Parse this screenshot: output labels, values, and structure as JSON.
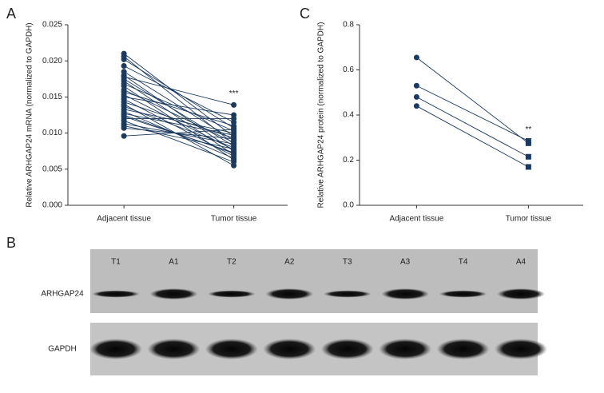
{
  "chart_data": [
    {
      "type": "paired-line",
      "panel_label": "A",
      "ylabel": "Relative ARHGAP24 mRNA (normalized to GAPDH)",
      "categories": [
        "Adjacent tissue",
        "Tumor tissue"
      ],
      "color": "#1b3a5e",
      "markers": [
        "circle",
        "circle"
      ],
      "ylim": [
        0,
        0.025
      ],
      "yticks": [
        {
          "value": 0,
          "label": "0.000"
        },
        {
          "value": 0.005,
          "label": "0.005"
        },
        {
          "value": 0.01,
          "label": "0.010"
        },
        {
          "value": 0.015,
          "label": "0.015"
        },
        {
          "value": 0.02,
          "label": "0.020"
        },
        {
          "value": 0.025,
          "label": "0.025"
        }
      ],
      "annotation": "***",
      "series": [
        {
          "values": [
            0.021,
            0.0095
          ]
        },
        {
          "values": [
            0.0206,
            0.0085
          ]
        },
        {
          "values": [
            0.0202,
            0.0107
          ]
        },
        {
          "values": [
            0.0193,
            0.0115
          ]
        },
        {
          "values": [
            0.0185,
            0.009
          ]
        },
        {
          "values": [
            0.018,
            0.0075
          ]
        },
        {
          "values": [
            0.0178,
            0.0139
          ]
        },
        {
          "values": [
            0.0175,
            0.0082
          ]
        },
        {
          "values": [
            0.0172,
            0.007
          ]
        },
        {
          "values": [
            0.0168,
            0.0103
          ]
        },
        {
          "values": [
            0.0165,
            0.0063
          ]
        },
        {
          "values": [
            0.016,
            0.0087
          ]
        },
        {
          "values": [
            0.0157,
            0.011
          ]
        },
        {
          "values": [
            0.0153,
            0.0077
          ]
        },
        {
          "values": [
            0.015,
            0.0125
          ]
        },
        {
          "values": [
            0.0147,
            0.0068
          ]
        },
        {
          "values": [
            0.0143,
            0.0093
          ]
        },
        {
          "values": [
            0.014,
            0.0055
          ]
        },
        {
          "values": [
            0.0137,
            0.008
          ]
        },
        {
          "values": [
            0.0133,
            0.01
          ]
        },
        {
          "values": [
            0.013,
            0.0065
          ]
        },
        {
          "values": [
            0.0127,
            0.0097
          ]
        },
        {
          "values": [
            0.0123,
            0.0073
          ]
        },
        {
          "values": [
            0.012,
            0.012
          ]
        },
        {
          "values": [
            0.0117,
            0.006
          ]
        },
        {
          "values": [
            0.0113,
            0.0085
          ]
        },
        {
          "values": [
            0.011,
            0.0078
          ]
        },
        {
          "values": [
            0.0107,
            0.0092
          ]
        },
        {
          "values": [
            0.0096,
            0.0105
          ]
        },
        {
          "values": [
            0.0125,
            0.0072
          ]
        }
      ]
    },
    {
      "type": "paired-line",
      "panel_label": "C",
      "ylabel": "Relative ARHGAP24 protein (normalized to GAPDH)",
      "categories": [
        "Adjacent tissue",
        "Tumor tissue"
      ],
      "color": "#1b3a5e",
      "markers": [
        "circle",
        "square"
      ],
      "ylim": [
        0,
        0.8
      ],
      "yticks": [
        {
          "value": 0,
          "label": "0.0"
        },
        {
          "value": 0.2,
          "label": "0.2"
        },
        {
          "value": 0.4,
          "label": "0.4"
        },
        {
          "value": 0.6,
          "label": "0.6"
        },
        {
          "value": 0.8,
          "label": "0.8"
        }
      ],
      "annotation": "**",
      "series": [
        {
          "values": [
            0.655,
            0.275
          ]
        },
        {
          "values": [
            0.53,
            0.285
          ]
        },
        {
          "values": [
            0.48,
            0.215
          ]
        },
        {
          "values": [
            0.44,
            0.17
          ]
        }
      ]
    }
  ],
  "blot": {
    "panel_label": "B",
    "lanes": [
      "T1",
      "A1",
      "T2",
      "A2",
      "T3",
      "A3",
      "T4",
      "A4"
    ],
    "rows": [
      "ARHGAP24",
      "GAPDH"
    ]
  }
}
